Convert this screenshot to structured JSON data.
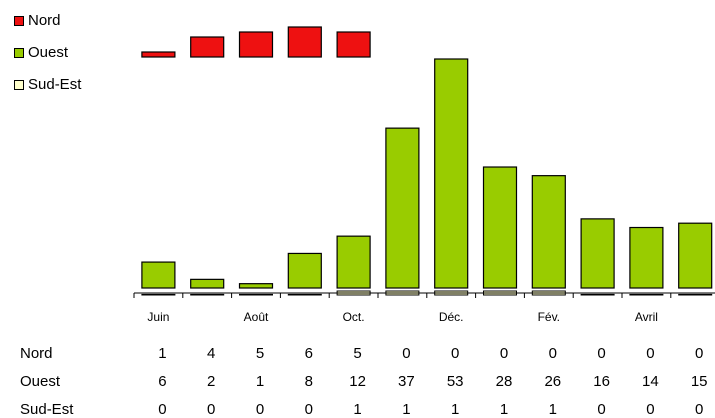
{
  "chart_data": {
    "type": "bar",
    "categories": [
      "Juin",
      "",
      "Août",
      "",
      "Oct.",
      "",
      "Déc.",
      "",
      "Fév.",
      "",
      "Avril",
      ""
    ],
    "series": [
      {
        "name": "Nord",
        "color": "#ee1111",
        "values": [
          1,
          4,
          5,
          6,
          5,
          0,
          0,
          0,
          0,
          0,
          0,
          0
        ]
      },
      {
        "name": "Ouest",
        "color": "#99cc00",
        "values": [
          6,
          2,
          1,
          8,
          12,
          37,
          53,
          28,
          26,
          16,
          14,
          15
        ]
      },
      {
        "name": "Sud-Est",
        "color": "#ffffcc",
        "values": [
          0,
          0,
          0,
          0,
          1,
          1,
          1,
          1,
          1,
          0,
          0,
          0
        ]
      }
    ],
    "legend": "top-left",
    "grid": false,
    "table_rows": [
      {
        "label": "Nord",
        "values": [
          "1",
          "4",
          "5",
          "6",
          "5",
          "0",
          "0",
          "0",
          "0",
          "0",
          "0",
          "0"
        ]
      },
      {
        "label": "Ouest",
        "values": [
          "6",
          "2",
          "1",
          "8",
          "12",
          "37",
          "53",
          "28",
          "26",
          "16",
          "14",
          "15"
        ]
      },
      {
        "label": "Sud-Est",
        "values": [
          "0",
          "0",
          "0",
          "0",
          "1",
          "1",
          "1",
          "1",
          "1",
          "0",
          "0",
          "0"
        ]
      }
    ]
  }
}
